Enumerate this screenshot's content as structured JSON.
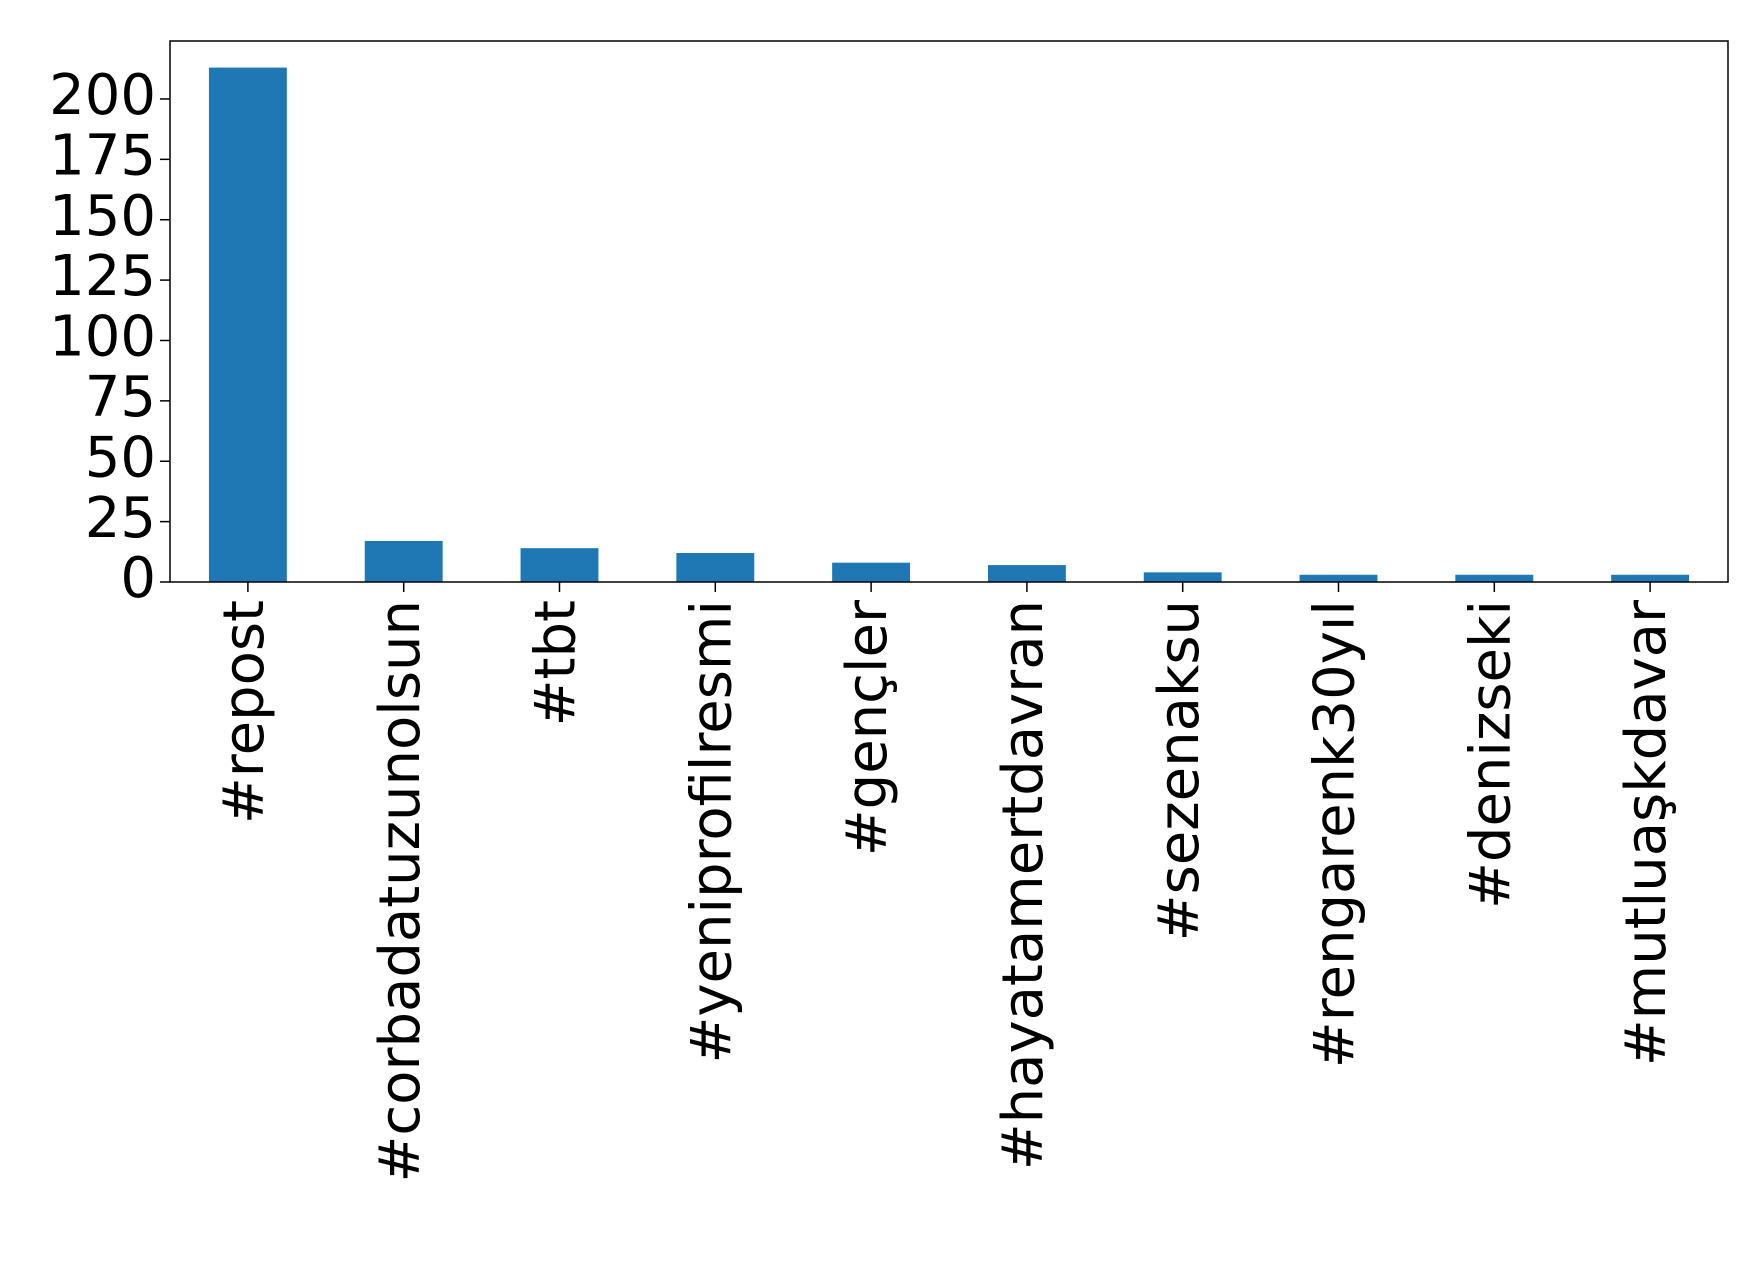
{
  "chart_data": {
    "type": "bar",
    "categories": [
      "#repost",
      "#corbadatuzunolsun",
      "#tbt",
      "#yeniprofilresmi",
      "#gençler",
      "#hayatamertdavran",
      "#sezenaksu",
      "#rengarenk30yıl",
      "#denizseki",
      "#mutluaşkdavar"
    ],
    "values": [
      213,
      17,
      14,
      12,
      8,
      7,
      4,
      3,
      3,
      3
    ],
    "color": "#1f77b4",
    "ylim": [
      0,
      224
    ],
    "yticks": [
      0,
      25,
      50,
      75,
      100,
      125,
      150,
      175,
      200
    ],
    "grid": false
  }
}
